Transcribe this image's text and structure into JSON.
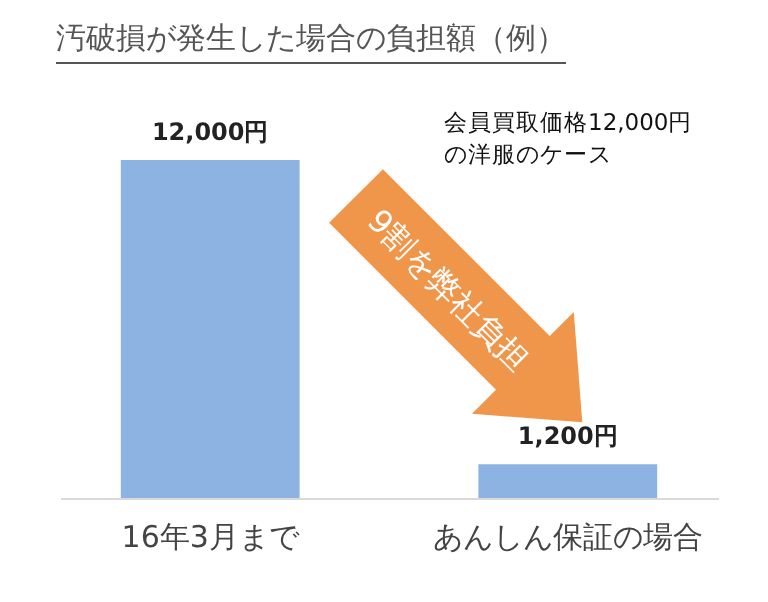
{
  "chart_data": {
    "type": "bar",
    "title": "汚破損が発生した場合の負担額（例）",
    "categories": [
      "16年3月まで",
      "あんしん保証の場合"
    ],
    "values": [
      12000,
      1200
    ],
    "value_labels": [
      "12,000円",
      "1,200円"
    ],
    "color": "#8db3e2",
    "annotations": [
      "会員買取価格12,000円",
      "の洋服のケース",
      "9割を弊社負担"
    ]
  }
}
